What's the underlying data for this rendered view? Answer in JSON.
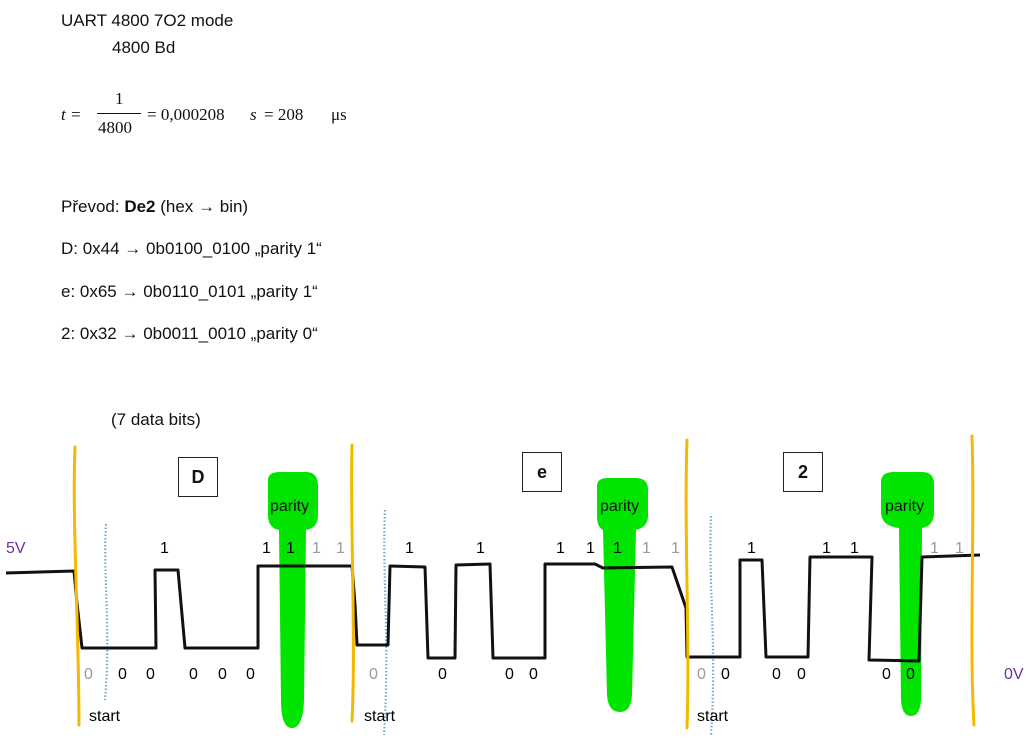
{
  "header": {
    "title": "UART 4800 7O2 mode",
    "baud": "4800 Bd",
    "formula": {
      "lhs": "t =",
      "num": "1",
      "den": "4800",
      "rhs": "= 0,000208",
      "unit_s": "s",
      "eq": "= 208",
      "unit_us": "μs"
    }
  },
  "conversion": {
    "prefix": "Převod: ",
    "word": "De2",
    "suffix": " (hex → bin)",
    "lines": [
      "D: 0x44 → 0b0100_0100 „parity 1“",
      "e: 0x65 → 0b0110_0101 „parity 1“",
      "2: 0x32 → 0b0011_0010 „parity 0“"
    ]
  },
  "diagram": {
    "note": "(7 data bits)",
    "voltage_high": "5V",
    "voltage_low": "0V",
    "start_label": "start",
    "parity_label": "parity",
    "colors": {
      "frame": "#f5b800",
      "parity": "#00e400",
      "start_marker": "#7aa7c7",
      "signal": "#111111",
      "voltage": "#7030a0",
      "stop_bits": "#9a9a9a"
    },
    "chars": [
      {
        "name": "D",
        "high_labels": [
          "1",
          "1",
          "1"
        ],
        "stop_labels": [
          "1",
          "1"
        ],
        "low_labels": [
          "0",
          "0",
          "0",
          "0",
          "0",
          "0"
        ]
      },
      {
        "name": "e",
        "high_labels": [
          "1",
          "1",
          "1",
          "1",
          "1"
        ],
        "stop_labels": [
          "1",
          "1"
        ],
        "low_labels": [
          "0",
          "0",
          "0",
          "0"
        ]
      },
      {
        "name": "2",
        "high_labels": [
          "1",
          "1",
          "1"
        ],
        "stop_labels": [
          "1",
          "1"
        ],
        "low_labels": [
          "0",
          "0",
          "0",
          "0",
          "0",
          "0"
        ]
      }
    ]
  }
}
